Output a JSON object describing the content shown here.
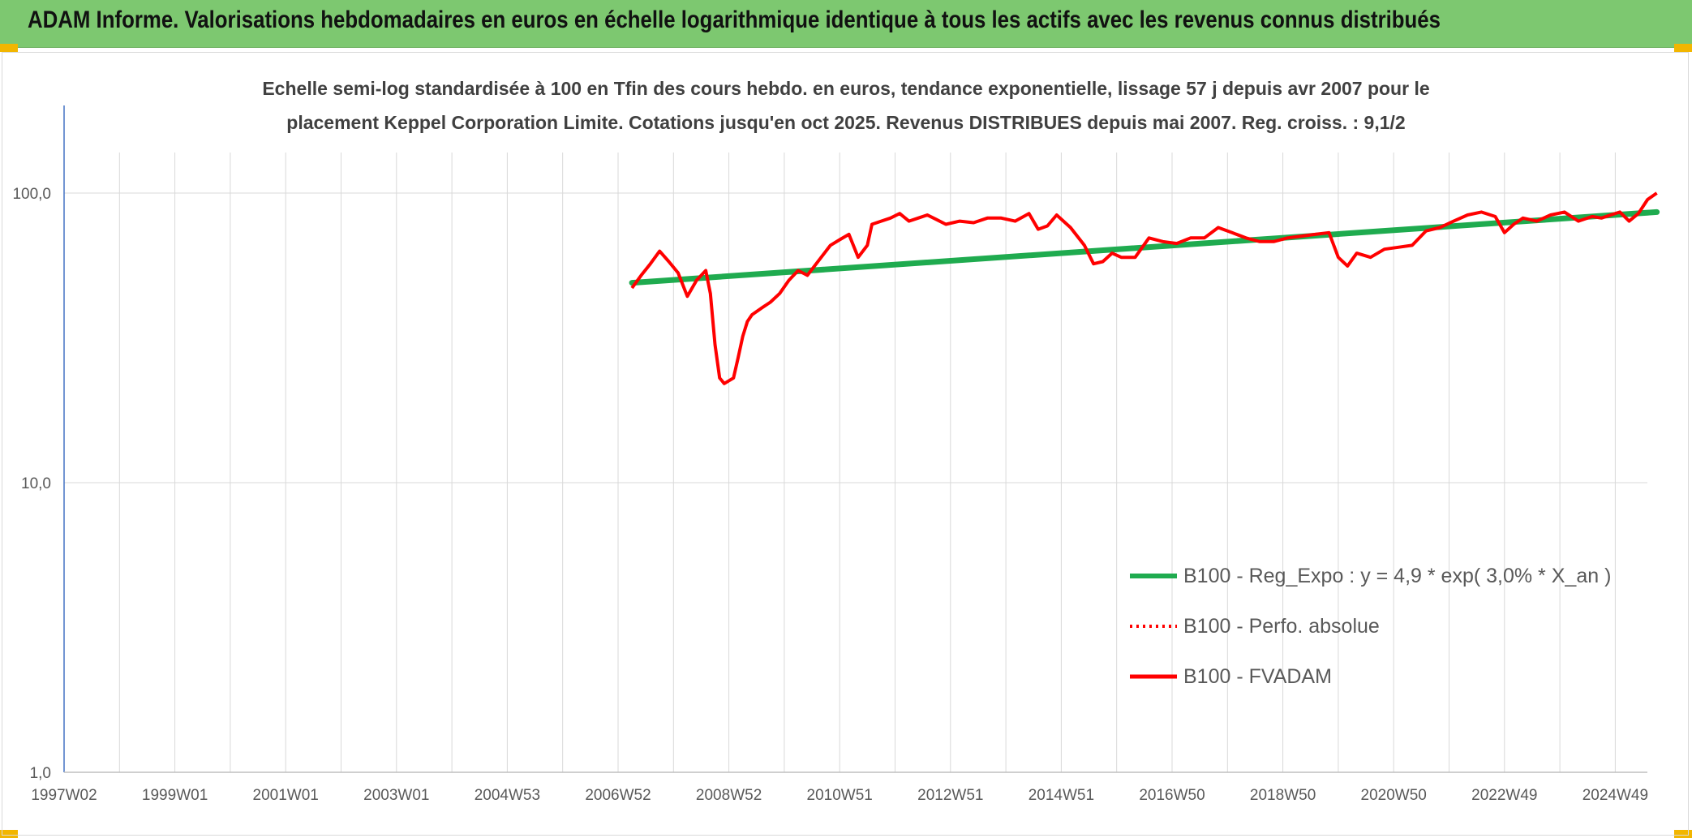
{
  "header": {
    "title": "ADAM Informe. Valorisations hebdomadaires en euros en échelle logarithmique identique à tous les actifs avec les revenus connus distribués"
  },
  "colors": {
    "header_bg": "#7dc870",
    "trend": "#1fab4f",
    "series": "#ff0000",
    "accent": "#f2b600",
    "grid": "#d9d9d9",
    "text": "#404040"
  },
  "chart_data": {
    "type": "line",
    "title_lines": [
      "Echelle semi-log standardisée à 100 en Tfin des cours hebdo. en euros, tendance exponentielle, lissage 57 j depuis avr 2007 pour le",
      "placement Keppel Corporation Limite. Cotations jusqu'en oct 2025. Revenus DISTRIBUES depuis mai 2007. Reg. croiss. : 9,1/2"
    ],
    "y_scale": "log",
    "y_range": [
      1,
      100
    ],
    "y_ticks": [
      "100,0",
      "10,0",
      "1,0"
    ],
    "x_ticks": [
      "1997W02",
      "1999W01",
      "2001W01",
      "2003W01",
      "2004W53",
      "2006W52",
      "2008W52",
      "2010W51",
      "2012W51",
      "2014W51",
      "2016W50",
      "2018W50",
      "2020W50",
      "2022W49",
      "2024W49"
    ],
    "grid": true,
    "legend_position": "right",
    "legend": [
      {
        "label": "B100 - Reg_Expo : y = 4,9 * exp( 3,0% *  X_an )",
        "style": "solid-green"
      },
      {
        "label": "B100 - Perfo. absolue",
        "style": "dotted-red"
      },
      {
        "label": "B100 - FVADAM",
        "style": "solid-red"
      }
    ],
    "series": [
      {
        "name": "B100 - Reg_Expo : y = 4,9 * exp( 3,0% *  X_an )",
        "x": [
          "2007-04",
          "2025-10"
        ],
        "y": [
          49,
          86
        ]
      },
      {
        "name": "B100 - FVADAM",
        "x": [
          "2007-04",
          "2007-06",
          "2007-08",
          "2007-10",
          "2007-12",
          "2008-02",
          "2008-04",
          "2008-06",
          "2008-08",
          "2008-09",
          "2008-10",
          "2008-11",
          "2008-12",
          "2009-02",
          "2009-03",
          "2009-04",
          "2009-05",
          "2009-06",
          "2009-08",
          "2009-10",
          "2009-12",
          "2010-02",
          "2010-04",
          "2010-06",
          "2010-09",
          "2010-11",
          "2011-01",
          "2011-03",
          "2011-05",
          "2011-07",
          "2011-08",
          "2011-10",
          "2011-12",
          "2012-02",
          "2012-04",
          "2012-06",
          "2012-08",
          "2012-10",
          "2012-12",
          "2013-03",
          "2013-06",
          "2013-09",
          "2013-12",
          "2014-03",
          "2014-06",
          "2014-08",
          "2014-10",
          "2014-12",
          "2015-03",
          "2015-06",
          "2015-08",
          "2015-10",
          "2015-12",
          "2016-02",
          "2016-05",
          "2016-08",
          "2016-11",
          "2017-02",
          "2017-05",
          "2017-08",
          "2017-11",
          "2018-02",
          "2018-05",
          "2018-08",
          "2018-11",
          "2019-02",
          "2019-05",
          "2019-08",
          "2019-11",
          "2020-01",
          "2020-03",
          "2020-05",
          "2020-08",
          "2020-11",
          "2021-02",
          "2021-05",
          "2021-08",
          "2021-11",
          "2022-02",
          "2022-05",
          "2022-08",
          "2022-11",
          "2023-01",
          "2023-03",
          "2023-05",
          "2023-08",
          "2023-11",
          "2024-02",
          "2024-05",
          "2024-08",
          "2024-10",
          "2024-12",
          "2025-02",
          "2025-04",
          "2025-06",
          "2025-08",
          "2025-10"
        ],
        "y": [
          47,
          52,
          57,
          63,
          58,
          53,
          44,
          50,
          54,
          45,
          30,
          23,
          22,
          23,
          27,
          32,
          36,
          38,
          40,
          42,
          45,
          50,
          54,
          52,
          60,
          66,
          69,
          72,
          60,
          66,
          78,
          80,
          82,
          85,
          80,
          82,
          84,
          81,
          78,
          80,
          79,
          82,
          82,
          80,
          85,
          75,
          77,
          84,
          76,
          66,
          57,
          58,
          62,
          60,
          60,
          70,
          68,
          67,
          70,
          70,
          76,
          73,
          70,
          68,
          68,
          70,
          71,
          72,
          73,
          60,
          56,
          62,
          60,
          64,
          65,
          66,
          74,
          76,
          80,
          84,
          86,
          83,
          73,
          78,
          82,
          80,
          84,
          86,
          80,
          83,
          82,
          84,
          86,
          80,
          85,
          95,
          100
        ]
      }
    ]
  }
}
